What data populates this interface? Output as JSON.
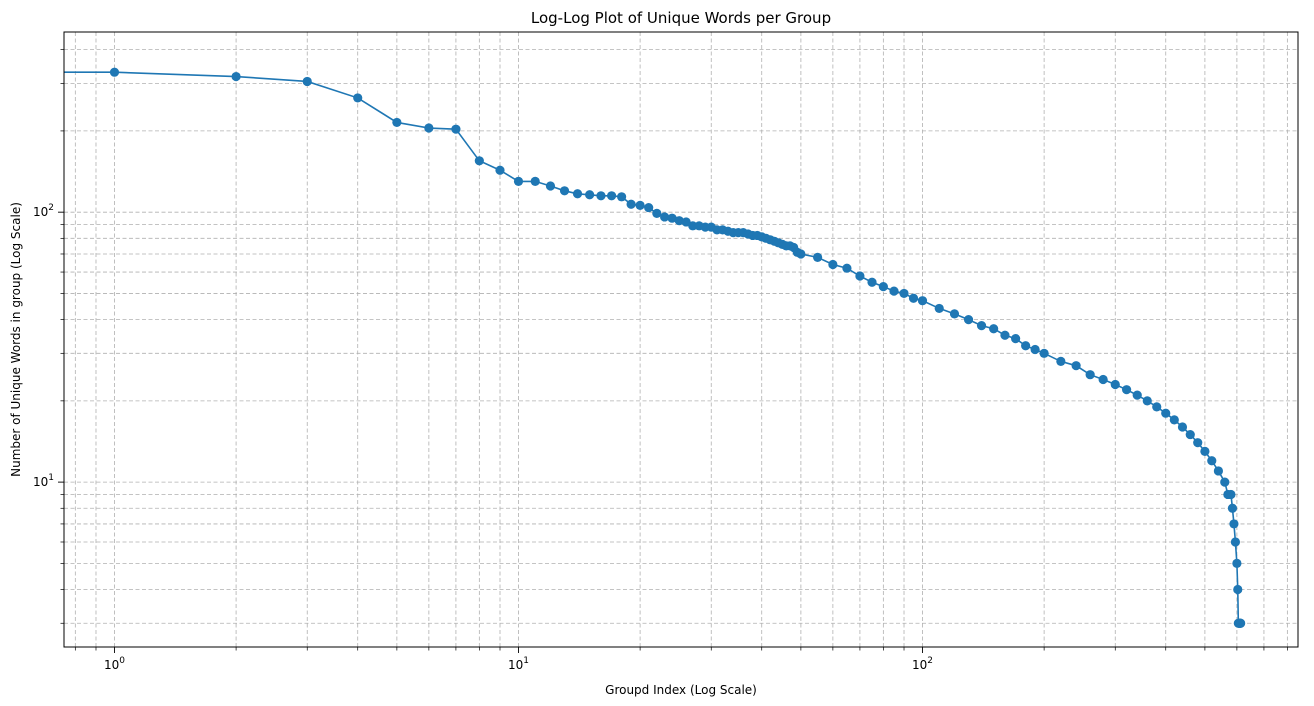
{
  "chart_data": {
    "type": "line",
    "title": "Log-Log Plot of Unique Words per Group",
    "xlabel": "Groupd Index (Log Scale)",
    "ylabel": "Number of Unique Words in group (Log Scale)",
    "xscale": "log",
    "yscale": "log",
    "xlim": [
      0.75,
      850
    ],
    "ylim": [
      2.45,
      465
    ],
    "grid": true,
    "grid_style": "dashed",
    "marker": "circle",
    "colors": {
      "series": "#1f77b4",
      "grid": "#b0b0b0"
    },
    "x_ticks": [
      {
        "base": "10",
        "exp": "0",
        "value": 1
      },
      {
        "base": "10",
        "exp": "1",
        "value": 10
      },
      {
        "base": "10",
        "exp": "2",
        "value": 100
      }
    ],
    "y_ticks": [
      {
        "base": "10",
        "exp": "1",
        "value": 10
      },
      {
        "base": "10",
        "exp": "2",
        "value": 100
      }
    ],
    "series": [
      {
        "x": [
          0,
          1,
          2,
          3,
          4,
          5,
          6,
          7,
          8,
          9,
          10,
          11,
          12,
          13,
          14,
          15,
          16,
          17,
          18,
          19,
          20,
          21,
          22,
          23,
          24,
          25,
          26,
          27,
          28,
          29,
          30,
          31,
          32,
          33,
          34,
          35,
          36,
          37,
          38,
          39,
          40,
          41,
          42,
          43,
          44,
          45,
          46,
          47,
          48,
          49,
          50,
          55,
          60,
          65,
          70,
          75,
          80,
          85,
          90,
          95,
          100,
          110,
          120,
          130,
          140,
          150,
          160,
          170,
          180,
          190,
          200,
          220,
          240,
          260,
          280,
          300,
          320,
          340,
          360,
          380,
          400,
          420,
          440,
          460,
          480,
          500,
          520,
          540,
          560,
          570,
          580,
          585,
          590,
          595,
          600,
          603,
          605,
          607,
          609,
          611,
          612,
          613
        ],
        "y": [
          330,
          330,
          318,
          305,
          265,
          215,
          205,
          203,
          155,
          143,
          130,
          130,
          125,
          120,
          117,
          116,
          115,
          115,
          114,
          107,
          106,
          104,
          99,
          96,
          95,
          93,
          92,
          89,
          89,
          88,
          88,
          86,
          86,
          85,
          84,
          84,
          84,
          83,
          82,
          82,
          81,
          80,
          79,
          78,
          77,
          76,
          75,
          75,
          74,
          71,
          70,
          68,
          64,
          62,
          58,
          55,
          53,
          51,
          50,
          48,
          47,
          44,
          42,
          40,
          38,
          37,
          35,
          34,
          32,
          31,
          30,
          28,
          27,
          25,
          24,
          23,
          22,
          21,
          20,
          19,
          18,
          17,
          16,
          15,
          14,
          13,
          12,
          11,
          10,
          9,
          9,
          8,
          7,
          6,
          5,
          4,
          3,
          3,
          3,
          3,
          3,
          3
        ]
      }
    ]
  }
}
